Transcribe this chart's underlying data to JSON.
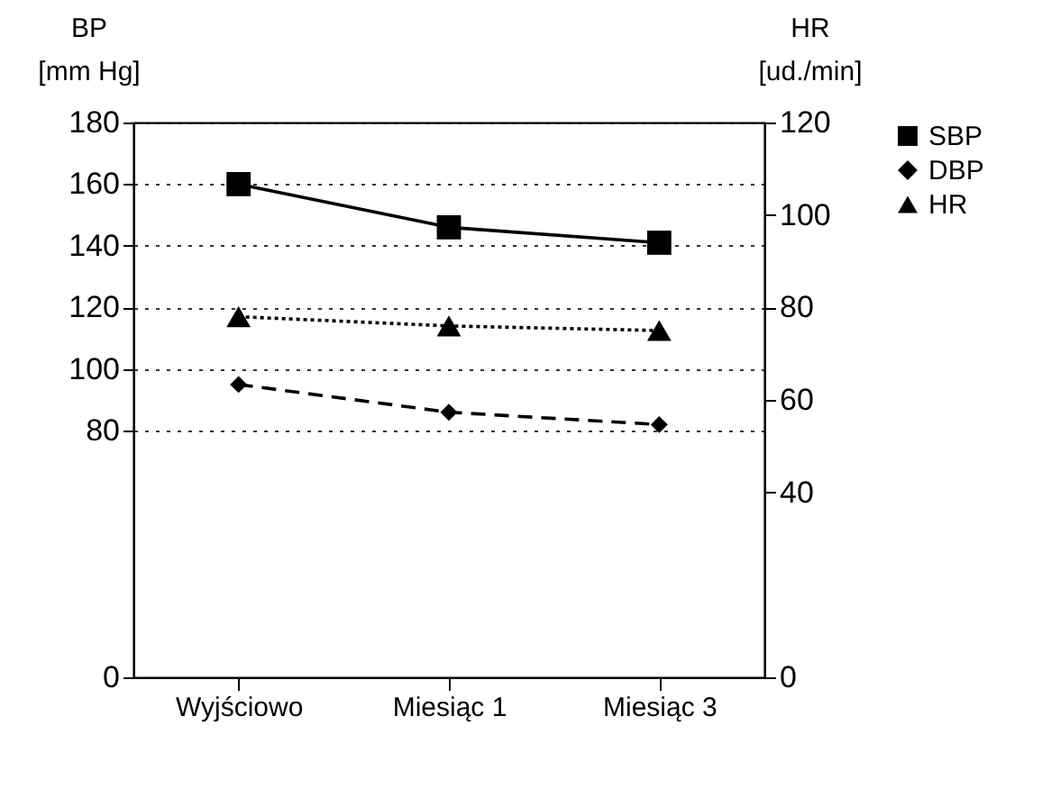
{
  "chart_data": {
    "type": "line",
    "categories": [
      "Wyjściowo",
      "Miesiąc 1",
      "Miesiąc 3"
    ],
    "ylabel": "BP\n[mm Hg]",
    "y2label": "HR\n[ud./min]",
    "ylim": [
      0,
      180
    ],
    "yticks": [
      0,
      80,
      100,
      120,
      140,
      160,
      180
    ],
    "y2lim": [
      0,
      120
    ],
    "y2ticks": [
      0,
      40,
      60,
      80,
      100,
      120
    ],
    "grid": "y",
    "legend": "right",
    "series": [
      {
        "name": "SBP",
        "color": "#000000",
        "values": [
          160,
          146,
          141
        ],
        "marker": "square",
        "line_style": "solid"
      },
      {
        "name": "DBP",
        "color": "#000000",
        "values": [
          95,
          86,
          82
        ],
        "marker": "diamond",
        "line_style": "dashed"
      },
      {
        "name": "HR",
        "color": "#000000",
        "values": [
          78,
          76,
          75
        ],
        "marker": "triangle",
        "line_style": "dotted",
        "axis": "y2"
      }
    ]
  }
}
